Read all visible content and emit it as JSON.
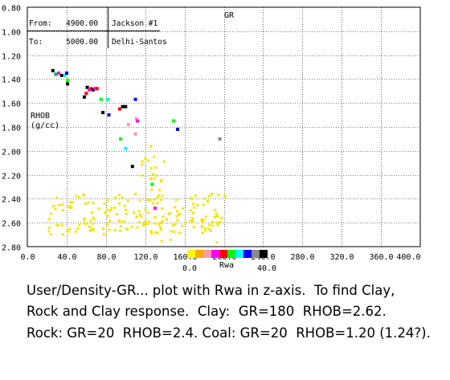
{
  "header": {
    "from_label": "From:",
    "from_value": "4900.00",
    "well_name": "Jackson #1",
    "to_label": "To:",
    "to_value": "5000.00",
    "field_name": "Delhi-Santos"
  },
  "chart_data": {
    "type": "scatter",
    "x_title": "GR",
    "y_title_line1": "RHOB",
    "y_title_line2": "(g/cc)",
    "xlim": [
      0,
      400
    ],
    "ylim": [
      0.8,
      2.8
    ],
    "y_inverted": true,
    "x_ticks": [
      0,
      40,
      80,
      120,
      160,
      200,
      240,
      280,
      320,
      360,
      400
    ],
    "x_tick_labels": [
      "0.0",
      "40.0",
      "80.0",
      "120.0",
      "160.0",
      "200.0",
      "240.0",
      "280.0",
      "320.0",
      "360.0",
      "400.0"
    ],
    "y_ticks": [
      0.8,
      1.0,
      1.2,
      1.4,
      1.6,
      1.8,
      2.0,
      2.2,
      2.4,
      2.6,
      2.8
    ],
    "y_tick_labels": [
      "0.80",
      "1.00",
      "1.20",
      "1.40",
      "1.60",
      "1.80",
      "2.00",
      "2.20",
      "2.40",
      "2.60",
      "2.80"
    ],
    "grid": true,
    "z_title": "Rwa",
    "z_min_label": "0.0",
    "z_max_label": "40.0",
    "z_palette": [
      "#ffff00",
      "#ffaa00",
      "#ff99aa",
      "#ff00ff",
      "#ff0000",
      "#00ff00",
      "#00ffff",
      "#0000ff",
      "#888888",
      "#000000"
    ],
    "points_colored": [
      {
        "x": 26,
        "y": 1.33,
        "color": "#000000"
      },
      {
        "x": 29,
        "y": 1.36,
        "color": "#00aa55"
      },
      {
        "x": 32,
        "y": 1.35,
        "color": "#ff00ff"
      },
      {
        "x": 35,
        "y": 1.37,
        "color": "#000000"
      },
      {
        "x": 38,
        "y": 1.37,
        "color": "#00ffff"
      },
      {
        "x": 40,
        "y": 1.35,
        "color": "#0000ff"
      },
      {
        "x": 41,
        "y": 1.41,
        "color": "#00ff00"
      },
      {
        "x": 41,
        "y": 1.44,
        "color": "#000000"
      },
      {
        "x": 58,
        "y": 1.55,
        "color": "#000000"
      },
      {
        "x": 60,
        "y": 1.52,
        "color": "#ff0000"
      },
      {
        "x": 61,
        "y": 1.47,
        "color": "#000000"
      },
      {
        "x": 63,
        "y": 1.49,
        "color": "#ff00ff"
      },
      {
        "x": 65,
        "y": 1.48,
        "color": "#ff0000"
      },
      {
        "x": 67,
        "y": 1.49,
        "color": "#000000"
      },
      {
        "x": 69,
        "y": 1.48,
        "color": "#ff00ff"
      },
      {
        "x": 71,
        "y": 1.48,
        "color": "#ff0000"
      },
      {
        "x": 75,
        "y": 1.57,
        "color": "#00ff00"
      },
      {
        "x": 77,
        "y": 1.68,
        "color": "#000000"
      },
      {
        "x": 82,
        "y": 1.57,
        "color": "#00ffaa"
      },
      {
        "x": 83,
        "y": 1.7,
        "color": "#0000ff"
      },
      {
        "x": 94,
        "y": 1.65,
        "color": "#ff0000"
      },
      {
        "x": 97,
        "y": 1.63,
        "color": "#000000"
      },
      {
        "x": 100,
        "y": 1.63,
        "color": "#000000"
      },
      {
        "x": 103,
        "y": 1.78,
        "color": "#ff99aa"
      },
      {
        "x": 110,
        "y": 1.57,
        "color": "#0000ff"
      },
      {
        "x": 111,
        "y": 1.73,
        "color": "#ff99aa"
      },
      {
        "x": 112,
        "y": 1.75,
        "color": "#ff00ff"
      },
      {
        "x": 110,
        "y": 1.86,
        "color": "#ff99aa"
      },
      {
        "x": 95,
        "y": 1.9,
        "color": "#00ff00"
      },
      {
        "x": 100,
        "y": 1.98,
        "color": "#00ffff"
      },
      {
        "x": 107,
        "y": 2.13,
        "color": "#000000"
      },
      {
        "x": 127,
        "y": 2.28,
        "color": "#00ff00"
      },
      {
        "x": 130,
        "y": 2.48,
        "color": "#ff00ff"
      },
      {
        "x": 149,
        "y": 1.75,
        "color": "#00ff00"
      },
      {
        "x": 153,
        "y": 1.82,
        "color": "#0000ff"
      },
      {
        "x": 196,
        "y": 1.9,
        "color": "#888888"
      }
    ]
  },
  "caption": {
    "line1": "User/Density-GR... plot with Rwa in z-axis.  To find Clay,",
    "line2": "Rock and Clay response.  Clay:  GR=180  RHOB=2.62.",
    "line3": "Rock: GR=20  RHOB=2.4. Coal: GR=20  RHOB=1.20 (1.24?)."
  }
}
